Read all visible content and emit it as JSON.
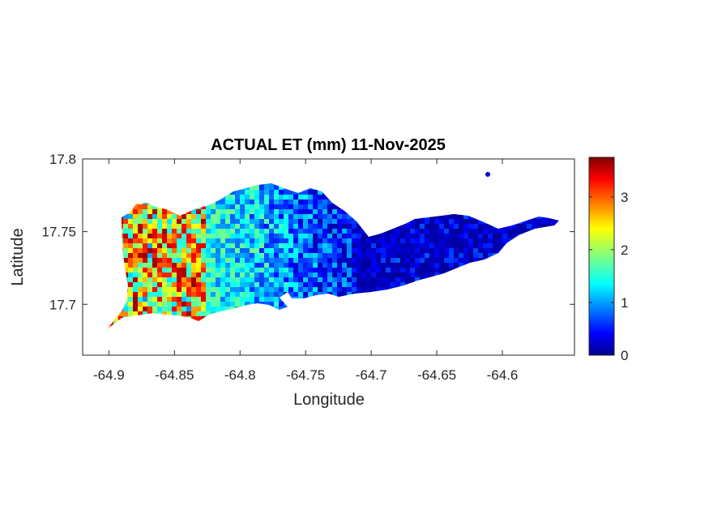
{
  "chart_data": {
    "type": "heatmap",
    "title": "ACTUAL ET (mm) 11-Nov-2025",
    "xlabel": "Longitude",
    "ylabel": "Latitude",
    "xlim": [
      -64.92,
      -64.545
    ],
    "ylim": [
      17.665,
      17.8
    ],
    "xticks": [
      -64.9,
      -64.85,
      -64.8,
      -64.75,
      -64.7,
      -64.65,
      -64.6
    ],
    "xtick_labels": [
      "-64.9",
      "-64.85",
      "-64.8",
      "-64.75",
      "-64.7",
      "-64.65",
      "-64.6"
    ],
    "yticks": [
      17.8,
      17.75,
      17.7
    ],
    "ytick_labels": [
      "17.8",
      "17.75",
      "17.7"
    ],
    "colorbar": {
      "colormap": "jet",
      "range": [
        0,
        3.75
      ],
      "ticks": [
        0,
        1,
        2,
        3
      ],
      "tick_labels": [
        "0",
        "1",
        "2",
        "3"
      ]
    },
    "data_summary": {
      "west_region_values": [
        1.5,
        3.7
      ],
      "central_region_values": [
        0.5,
        1.8
      ],
      "east_region_values": [
        0,
        0.8
      ]
    }
  }
}
